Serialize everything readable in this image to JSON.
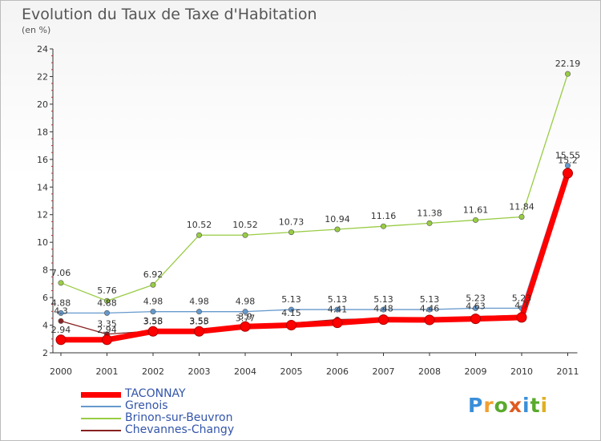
{
  "header": {
    "title": "Evolution du Taux de Taxe d'Habitation",
    "subtitle": "(en %)"
  },
  "logo": {
    "text": "Proxiti"
  },
  "chart_data": {
    "type": "line",
    "title": "Evolution du Taux de Taxe d'Habitation",
    "ylabel": "(en %)",
    "xlabel": "",
    "ylim": [
      2,
      24
    ],
    "yticks": [
      2,
      4,
      6,
      8,
      10,
      12,
      14,
      16,
      18,
      20,
      22,
      24
    ],
    "categories": [
      "2000",
      "2001",
      "2002",
      "2003",
      "2004",
      "2005",
      "2006",
      "2007",
      "2008",
      "2009",
      "2010",
      "2011"
    ],
    "grid": false,
    "legend_position": "bottom-left",
    "series": [
      {
        "name": "TACONNAY",
        "color": "#ff0000",
        "values": [
          2.94,
          2.94,
          3.55,
          3.55,
          3.9,
          4.0,
          4.17,
          4.4,
          4.38,
          4.46,
          4.56,
          15.0
        ],
        "labels": [
          "2.94",
          "2.94",
          "3.55",
          "3.55",
          "3.9",
          "",
          "",
          "",
          "",
          "",
          "",
          ""
        ]
      },
      {
        "name": "Grenois",
        "color": "#6699cc",
        "values": [
          4.88,
          4.88,
          4.98,
          4.98,
          4.98,
          5.13,
          5.13,
          5.13,
          5.13,
          5.23,
          5.23,
          15.55
        ],
        "labels": [
          "4.88",
          "4.88",
          "4.98",
          "4.98",
          "4.98",
          "5.13",
          "5.13",
          "5.13",
          "5.13",
          "5.23",
          "5.23",
          "15.55"
        ]
      },
      {
        "name": "Brinon-sur-Beuvron",
        "color": "#99cc44",
        "values": [
          7.06,
          5.76,
          6.92,
          10.52,
          10.52,
          10.73,
          10.94,
          11.16,
          11.38,
          11.61,
          11.84,
          22.19
        ],
        "labels": [
          "7.06",
          "5.76",
          "6.92",
          "10.52",
          "10.52",
          "10.73",
          "10.94",
          "11.16",
          "11.38",
          "11.61",
          "11.84",
          "22.19"
        ]
      },
      {
        "name": "Chevannes-Changy",
        "color": "#882222",
        "values": [
          4.3,
          3.35,
          3.58,
          3.58,
          3.77,
          4.15,
          4.41,
          4.48,
          4.46,
          4.63,
          4.7,
          15.2
        ],
        "labels": [
          "4.3",
          "3.35",
          "3.58",
          "3.58",
          "3.77",
          "4.15",
          "4.41",
          "4.48",
          "4.46",
          "4.63",
          "4.7",
          "15.2"
        ]
      }
    ]
  }
}
